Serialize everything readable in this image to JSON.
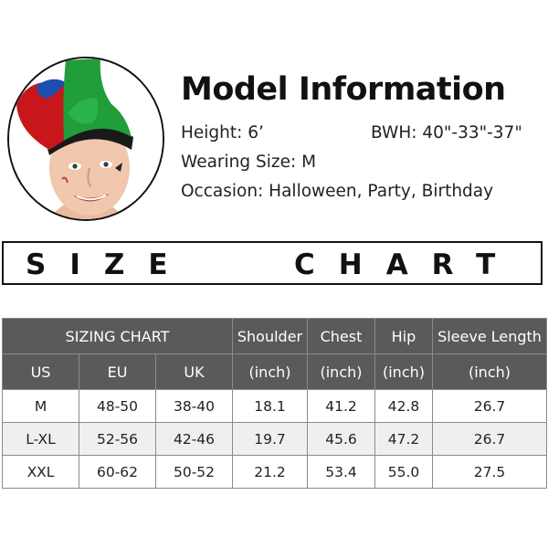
{
  "model_info": {
    "title": "Model Information",
    "height": "Height: 6’",
    "bwh": "BWH: 40\"-33\"-37\"",
    "wearing_size": "Wearing Size: M",
    "occasion": "Occasion: Halloween, Party, Birthday"
  },
  "banner": {
    "word1": "SIZE",
    "word2": "CHART"
  },
  "table": {
    "group_header": "SIZING CHART",
    "headers": [
      "Shoulder",
      "Chest",
      "Hip",
      "Sleeve Length"
    ],
    "subheaders": [
      "US",
      "EU",
      "UK",
      "(inch)",
      "(inch)",
      "(inch)",
      "(inch)"
    ],
    "rows": [
      [
        "M",
        "48-50",
        "38-40",
        "18.1",
        "41.2",
        "42.8",
        "26.7"
      ],
      [
        "L-XL",
        "52-56",
        "42-46",
        "19.7",
        "45.6",
        "47.2",
        "26.7"
      ],
      [
        "XXL",
        "60-62",
        "50-52",
        "21.2",
        "53.4",
        "55.0",
        "27.5"
      ]
    ]
  },
  "colors": {
    "header_bg": "#5a5a5a",
    "alt_row_bg": "#efefef",
    "hat_green": "#1f9e3a",
    "hat_red": "#c8171c",
    "hat_blue": "#1b4fb0"
  }
}
